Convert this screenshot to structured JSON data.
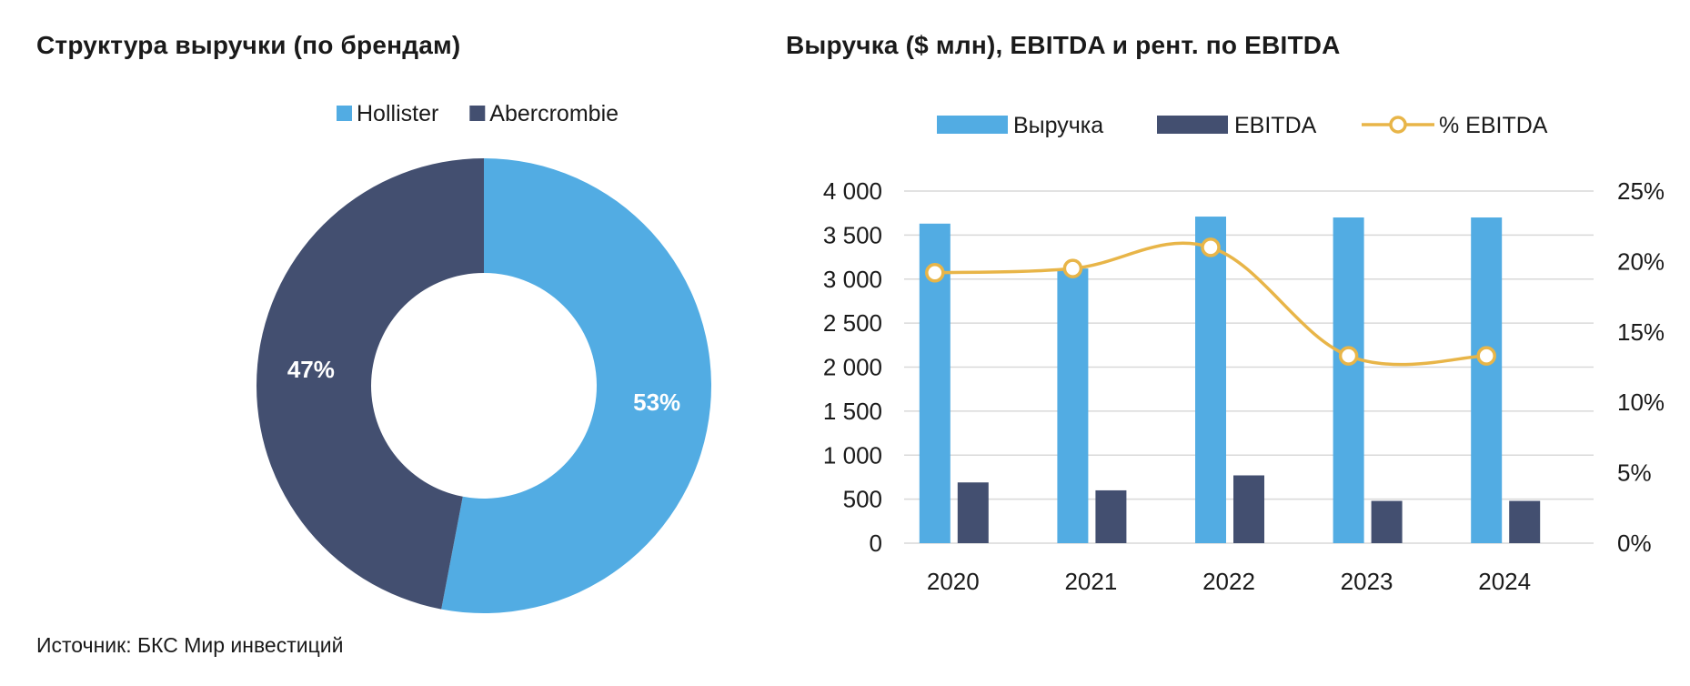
{
  "colors": {
    "hollister": "#52ace3",
    "abercrombie": "#434f70",
    "revenue": "#52ace3",
    "ebitda": "#434f70",
    "margin_line": "#e8b548",
    "grid": "#d9d9d9"
  },
  "source": "Источник: БКС Мир инвестиций",
  "chart_data": [
    {
      "type": "pie",
      "title": "Структура выручки (по брендам)",
      "legend_position": "top",
      "slices": [
        {
          "name": "Hollister",
          "value": 53,
          "label": "53%"
        },
        {
          "name": "Abercrombie",
          "value": 47,
          "label": "47%"
        }
      ]
    },
    {
      "type": "bar",
      "title": "Выручка ($ млн), EBITDA и рент. по EBITDA",
      "legend_position": "top",
      "categories": [
        "2020",
        "2021",
        "2022",
        "2023",
        "2024"
      ],
      "series": [
        {
          "name": "Выручка",
          "type": "bar",
          "axis": "left",
          "values": [
            3630,
            3120,
            3710,
            3700,
            3700
          ]
        },
        {
          "name": "EBITDA",
          "type": "bar",
          "axis": "left",
          "values": [
            690,
            600,
            770,
            480,
            480
          ]
        },
        {
          "name": "% EBITDA",
          "type": "line",
          "axis": "right",
          "values": [
            19.2,
            19.5,
            21.0,
            13.3,
            13.3
          ]
        }
      ],
      "ylim": [
        0,
        4000
      ],
      "yticks": [
        "0",
        "500",
        "1 000",
        "1 500",
        "2 000",
        "2 500",
        "3 000",
        "3 500",
        "4 000"
      ],
      "y2lim": [
        0,
        25
      ],
      "y2ticks": [
        "0%",
        "5%",
        "10%",
        "15%",
        "20%",
        "25%"
      ],
      "grid": true
    }
  ]
}
